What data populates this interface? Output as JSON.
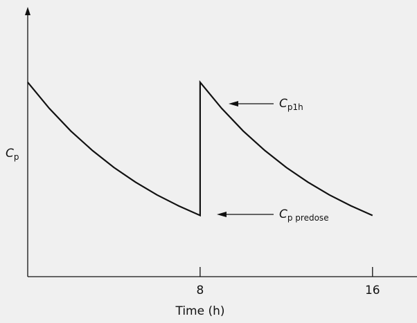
{
  "chart_data": {
    "type": "line",
    "xlabel": "Time (h)",
    "ylabel": {
      "text": "C",
      "sub": "p"
    },
    "x": [
      0,
      1,
      2,
      3,
      4,
      5,
      6,
      7,
      8,
      8,
      9,
      10,
      11,
      12,
      13,
      14,
      15,
      16
    ],
    "values": [
      7.3,
      6.32,
      5.47,
      4.74,
      4.1,
      3.55,
      3.07,
      2.66,
      2.3,
      7.3,
      6.32,
      5.47,
      4.74,
      4.1,
      3.55,
      3.07,
      2.66,
      2.3
    ],
    "color": "#111111",
    "xlim": [
      0,
      18
    ],
    "ylim": [
      0,
      10
    ],
    "xticks": [
      8,
      16
    ],
    "annotations": [
      {
        "text": "C",
        "sub": "p1h"
      },
      {
        "text": "C",
        "sub": "p predose"
      }
    ]
  }
}
